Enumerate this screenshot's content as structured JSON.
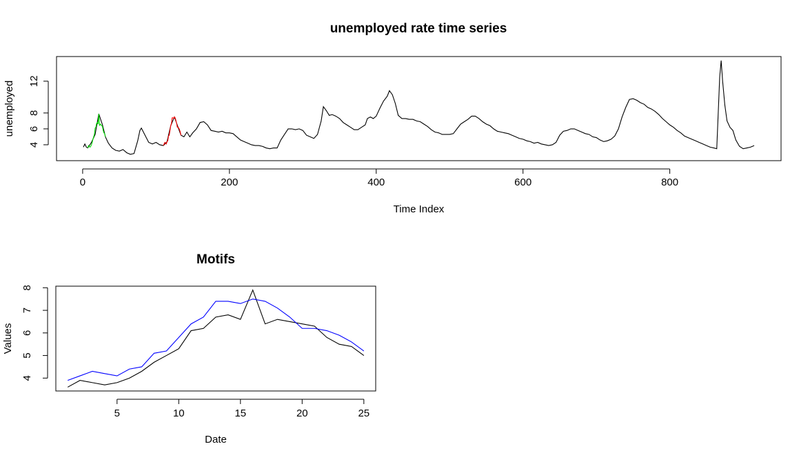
{
  "chart_data": [
    {
      "type": "line",
      "title": "unemployed rate time series",
      "xlabel": "Time Index",
      "ylabel": "unemployed",
      "xlim": [
        -35.6,
        951.6
      ],
      "ylim": [
        2.0,
        15.1
      ],
      "xticks": [
        0,
        200,
        400,
        600,
        800
      ],
      "yticks": [
        4,
        6,
        8,
        12
      ],
      "series": [
        {
          "color": "#000000",
          "x": [
            1,
            3,
            5,
            7,
            12,
            17,
            22,
            27,
            31,
            35,
            40,
            45,
            50,
            55,
            60,
            65,
            70,
            75,
            78,
            80,
            85,
            90,
            95,
            100,
            105,
            110,
            115,
            120,
            125,
            130,
            134,
            138,
            142,
            146,
            150,
            155,
            160,
            165,
            170,
            175,
            180,
            185,
            190,
            195,
            200,
            205,
            210,
            215,
            220,
            225,
            230,
            235,
            240,
            245,
            250,
            255,
            260,
            265,
            270,
            275,
            280,
            285,
            290,
            295,
            300,
            305,
            310,
            315,
            320,
            325,
            328,
            332,
            336,
            340,
            345,
            350,
            355,
            360,
            365,
            370,
            375,
            380,
            385,
            388,
            392,
            396,
            400,
            405,
            410,
            415,
            418,
            422,
            426,
            430,
            435,
            440,
            445,
            450,
            455,
            460,
            465,
            470,
            475,
            480,
            485,
            490,
            495,
            500,
            505,
            510,
            515,
            520,
            525,
            530,
            535,
            540,
            545,
            550,
            555,
            560,
            565,
            570,
            575,
            580,
            585,
            590,
            595,
            600,
            605,
            610,
            615,
            620,
            625,
            630,
            635,
            640,
            645,
            650,
            655,
            660,
            665,
            670,
            675,
            680,
            685,
            690,
            695,
            700,
            705,
            710,
            715,
            720,
            725,
            730,
            735,
            740,
            745,
            750,
            755,
            760,
            765,
            770,
            775,
            780,
            785,
            790,
            795,
            800,
            805,
            810,
            815,
            820,
            825,
            830,
            835,
            840,
            845,
            850,
            855,
            860,
            864,
            866,
            868,
            870,
            872,
            875,
            878,
            882,
            886,
            890,
            895,
            900,
            905,
            910,
            915
          ],
          "values": [
            3.7,
            4.1,
            3.7,
            3.6,
            4.3,
            5.3,
            7.9,
            6.5,
            5.0,
            4.2,
            3.6,
            3.3,
            3.2,
            3.4,
            3.0,
            2.8,
            2.9,
            4.5,
            5.8,
            6.1,
            5.2,
            4.3,
            4.1,
            4.3,
            4.0,
            3.9,
            4.4,
            6.4,
            7.5,
            6.2,
            5.2,
            5.0,
            5.6,
            5.0,
            5.5,
            6.0,
            6.8,
            6.9,
            6.5,
            5.8,
            5.7,
            5.6,
            5.7,
            5.5,
            5.5,
            5.4,
            5.0,
            4.6,
            4.4,
            4.2,
            4.0,
            3.9,
            3.9,
            3.8,
            3.6,
            3.5,
            3.6,
            3.6,
            4.6,
            5.3,
            6.0,
            6.0,
            5.9,
            6.0,
            5.8,
            5.2,
            5.0,
            4.8,
            5.3,
            7.0,
            8.8,
            8.3,
            7.7,
            7.8,
            7.6,
            7.3,
            6.8,
            6.5,
            6.2,
            5.9,
            5.9,
            6.2,
            6.5,
            7.3,
            7.5,
            7.3,
            7.6,
            8.6,
            9.5,
            10.1,
            10.8,
            10.3,
            9.2,
            7.7,
            7.3,
            7.3,
            7.2,
            7.2,
            7.0,
            6.9,
            6.6,
            6.3,
            5.9,
            5.6,
            5.5,
            5.3,
            5.3,
            5.3,
            5.4,
            6.0,
            6.6,
            6.9,
            7.2,
            7.6,
            7.6,
            7.3,
            6.9,
            6.6,
            6.4,
            6.0,
            5.7,
            5.6,
            5.5,
            5.4,
            5.2,
            5.0,
            4.8,
            4.7,
            4.5,
            4.4,
            4.2,
            4.3,
            4.1,
            4.0,
            3.9,
            4.0,
            4.3,
            5.2,
            5.7,
            5.8,
            6.0,
            6.0,
            5.8,
            5.6,
            5.4,
            5.3,
            5.0,
            4.9,
            4.6,
            4.4,
            4.5,
            4.7,
            5.1,
            6.0,
            7.5,
            8.7,
            9.7,
            9.8,
            9.6,
            9.3,
            9.1,
            8.7,
            8.5,
            8.2,
            7.8,
            7.3,
            6.9,
            6.5,
            6.2,
            5.8,
            5.5,
            5.1,
            4.9,
            4.7,
            4.5,
            4.3,
            4.1,
            3.9,
            3.7,
            3.6,
            3.5,
            8.0,
            12.5,
            14.6,
            12.0,
            9.0,
            7.0,
            6.2,
            5.8,
            4.6,
            3.8,
            3.5,
            3.6,
            3.7,
            3.9
          ]
        },
        {
          "color": "#00dd00",
          "x": [
            7,
            8,
            9,
            10,
            11,
            12,
            13,
            14,
            15,
            16,
            17,
            18,
            19,
            20,
            21,
            22,
            23,
            24,
            25,
            26,
            27,
            28,
            29,
            30,
            31
          ],
          "values": [
            3.6,
            3.9,
            3.8,
            3.7,
            3.8,
            4.0,
            4.3,
            4.7,
            5.0,
            5.3,
            6.1,
            6.2,
            6.7,
            6.8,
            6.6,
            7.9,
            6.4,
            6.6,
            6.5,
            6.4,
            6.3,
            5.8,
            5.5,
            5.4,
            5.0
          ]
        },
        {
          "color": "#ff0000",
          "x": [
            110,
            111,
            112,
            113,
            114,
            115,
            116,
            117,
            118,
            119,
            120,
            121,
            122,
            123,
            124,
            125,
            126,
            127,
            128,
            129,
            130,
            131,
            132,
            133,
            134
          ],
          "values": [
            3.9,
            4.1,
            4.3,
            4.2,
            4.1,
            4.4,
            4.5,
            5.1,
            5.2,
            5.8,
            6.4,
            6.7,
            7.4,
            7.4,
            7.3,
            7.5,
            7.4,
            7.1,
            6.7,
            6.2,
            6.2,
            6.1,
            5.9,
            5.6,
            5.2
          ]
        }
      ]
    },
    {
      "type": "line",
      "title": "Motifs",
      "xlabel": "Date",
      "ylabel": "Values",
      "xlim": [
        0.04,
        25.96
      ],
      "ylim": [
        3.43,
        8.07
      ],
      "xticks": [
        5,
        10,
        15,
        20,
        25
      ],
      "yticks": [
        4,
        5,
        6,
        7,
        8
      ],
      "series": [
        {
          "color": "#000000",
          "x": [
            1,
            2,
            3,
            4,
            5,
            6,
            7,
            8,
            9,
            10,
            11,
            12,
            13,
            14,
            15,
            16,
            17,
            18,
            19,
            20,
            21,
            22,
            23,
            24,
            25
          ],
          "values": [
            3.6,
            3.9,
            3.8,
            3.7,
            3.8,
            4.0,
            4.3,
            4.7,
            5.0,
            5.3,
            6.1,
            6.2,
            6.7,
            6.8,
            6.6,
            7.9,
            6.4,
            6.6,
            6.5,
            6.4,
            6.3,
            5.8,
            5.5,
            5.4,
            5.0
          ]
        },
        {
          "color": "#0000ff",
          "x": [
            1,
            2,
            3,
            4,
            5,
            6,
            7,
            8,
            9,
            10,
            11,
            12,
            13,
            14,
            15,
            16,
            17,
            18,
            19,
            20,
            21,
            22,
            23,
            24,
            25
          ],
          "values": [
            3.9,
            4.1,
            4.3,
            4.2,
            4.1,
            4.4,
            4.5,
            5.1,
            5.2,
            5.8,
            6.4,
            6.7,
            7.4,
            7.4,
            7.3,
            7.5,
            7.4,
            7.1,
            6.7,
            6.2,
            6.2,
            6.1,
            5.9,
            5.6,
            5.2
          ]
        }
      ]
    }
  ]
}
